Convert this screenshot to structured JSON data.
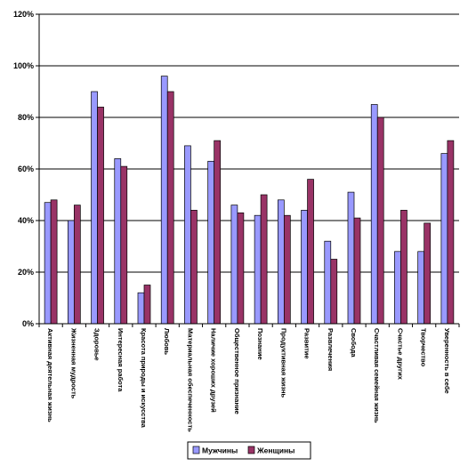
{
  "chart_data": {
    "type": "bar",
    "categories": [
      "Активная деятельная жизнь",
      "Жизненная мудрость",
      "Здоровье",
      "Интересная работа",
      "Красота природы и искусства",
      "Любовь",
      "Материальная обеспеченность",
      "Наличие хороших друзей",
      "Общественное признание",
      "Познание",
      "Продуктивная жизнь",
      "Развитие",
      "Развлечения",
      "Свобода",
      "Счастливая семейная жизнь",
      "Счастье других",
      "Творчество",
      "Уверенность в себе"
    ],
    "series": [
      {
        "name": "Мужчины",
        "color": "#9999FF",
        "values": [
          47,
          40,
          90,
          64,
          12,
          96,
          69,
          63,
          46,
          42,
          48,
          44,
          32,
          51,
          85,
          28,
          28,
          66
        ]
      },
      {
        "name": "Женщины",
        "color": "#993366",
        "values": [
          48,
          46,
          84,
          61,
          15,
          90,
          44,
          71,
          43,
          50,
          42,
          56,
          25,
          41,
          80,
          44,
          39,
          71
        ]
      }
    ],
    "ylim": [
      0,
      120
    ],
    "ytick_values": [
      0,
      20,
      40,
      60,
      80,
      100,
      120
    ],
    "ytick_labels": [
      "0%",
      "20%",
      "40%",
      "60%",
      "80%",
      "100%",
      "120%"
    ],
    "grid": true,
    "legend_position": "bottom"
  }
}
